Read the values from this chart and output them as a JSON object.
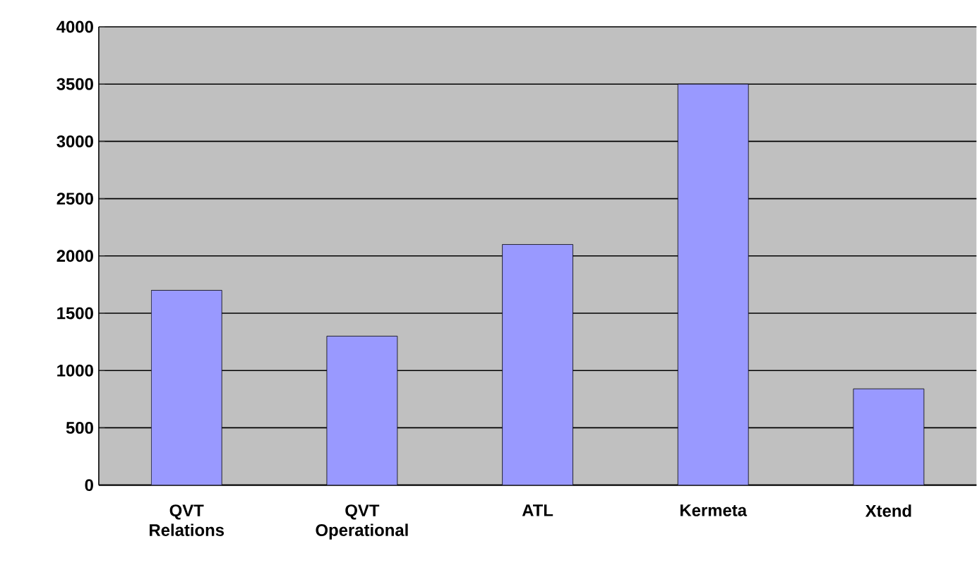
{
  "chart_data": {
    "type": "bar",
    "categories": [
      "QVT Relations",
      "QVT Operational",
      "ATL",
      "Kermeta",
      "Xtend"
    ],
    "values": [
      1700,
      1300,
      2100,
      3500,
      840
    ],
    "color": "#9999ff",
    "ylim": [
      0,
      4000
    ],
    "yticks": [
      0,
      500,
      1000,
      1500,
      2000,
      2500,
      3000,
      3500,
      4000
    ],
    "grid": "y"
  }
}
